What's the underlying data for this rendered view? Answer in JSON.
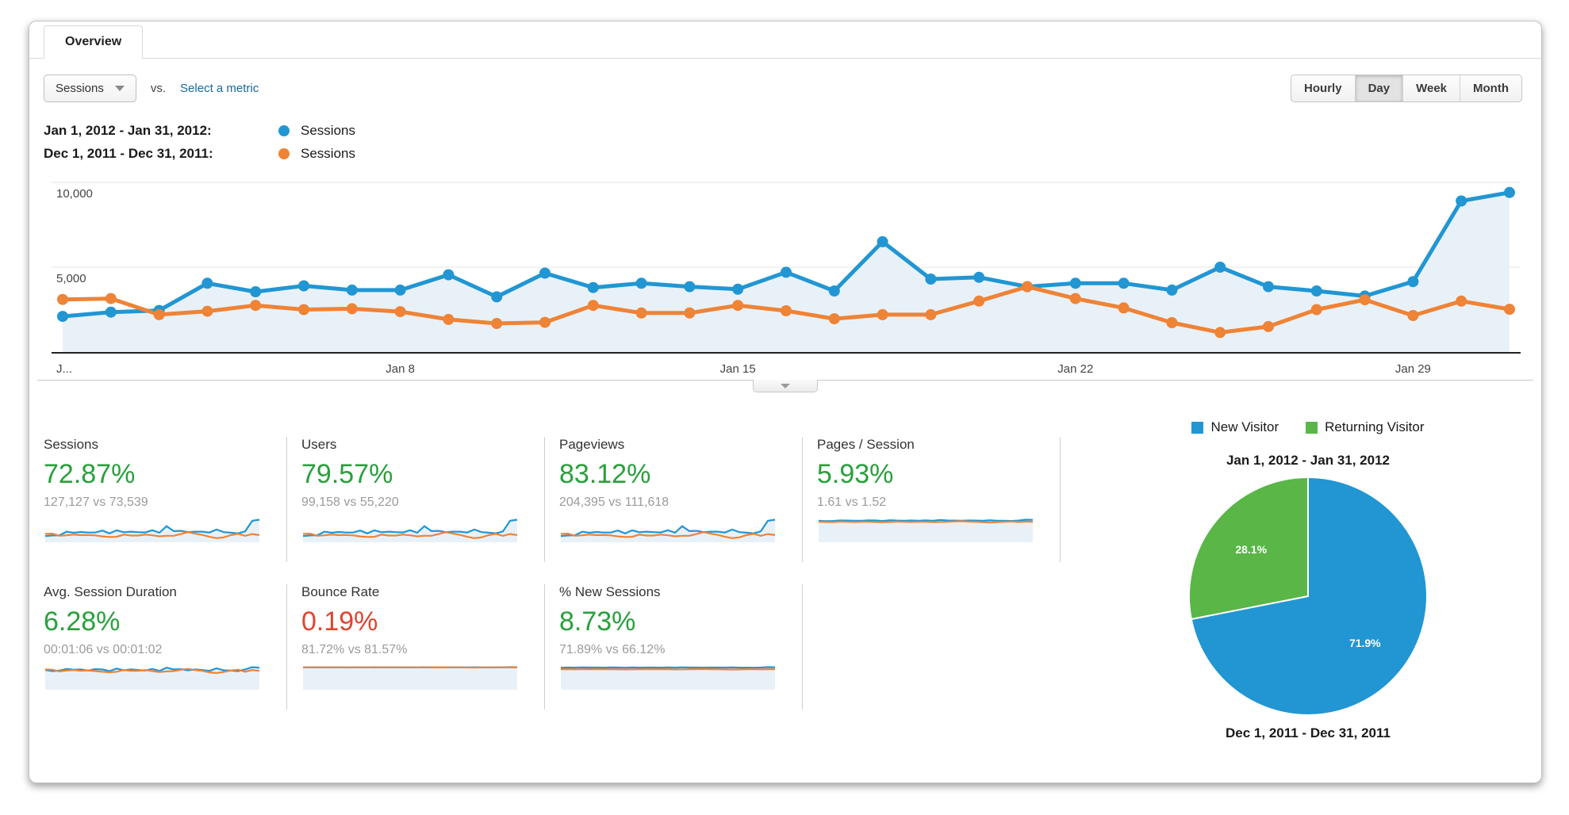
{
  "tab": {
    "label": "Overview"
  },
  "controls": {
    "metric_selector_value": "Sessions",
    "vs_label": "vs.",
    "select_metric_label": "Select a metric",
    "granularity": [
      {
        "label": "Hourly",
        "active": false
      },
      {
        "label": "Day",
        "active": true
      },
      {
        "label": "Week",
        "active": false
      },
      {
        "label": "Month",
        "active": false
      }
    ]
  },
  "colors": {
    "blue": "#2196d3",
    "orange": "#ef8336",
    "area_fill": "#e9f1f8",
    "pie_green": "#59b647",
    "green_text": "#28a03c",
    "red_text": "#e0442f",
    "link": "#156a9e",
    "grid": "#e4e4e4",
    "baseline": "#222222"
  },
  "legend": [
    {
      "range": "Jan 1, 2012 - Jan 31, 2012:",
      "metric": "Sessions",
      "color": "#2196d3"
    },
    {
      "range": "Dec 1, 2011 - Dec 31, 2011:",
      "metric": "Sessions",
      "color": "#ef8336"
    }
  ],
  "chart_data": [
    {
      "type": "line",
      "title": "Sessions by day, Jan 1 2012 - Jan 31 2012 vs Dec 1 2011 - Dec 31 2011",
      "x": [
        "Jan 1",
        "Jan 2",
        "Jan 3",
        "Jan 4",
        "Jan 5",
        "Jan 6",
        "Jan 7",
        "Jan 8",
        "Jan 9",
        "Jan 10",
        "Jan 11",
        "Jan 12",
        "Jan 13",
        "Jan 14",
        "Jan 15",
        "Jan 16",
        "Jan 17",
        "Jan 18",
        "Jan 19",
        "Jan 20",
        "Jan 21",
        "Jan 22",
        "Jan 23",
        "Jan 24",
        "Jan 25",
        "Jan 26",
        "Jan 27",
        "Jan 28",
        "Jan 29",
        "Jan 30",
        "Jan 31"
      ],
      "tick_labels": [
        {
          "day": 1,
          "label": "J...",
          "align": "left"
        },
        {
          "day": 8,
          "label": "Jan 8"
        },
        {
          "day": 15,
          "label": "Jan 15"
        },
        {
          "day": 22,
          "label": "Jan 22"
        },
        {
          "day": 29,
          "label": "Jan 29"
        }
      ],
      "ylim": [
        0,
        10000
      ],
      "yticks": [
        {
          "value": 5000,
          "label": "5,000"
        },
        {
          "value": 10000,
          "label": "10,000"
        }
      ],
      "grid": true,
      "series": [
        {
          "name": "Sessions (Jan 1, 2012 - Jan 31, 2012)",
          "color": "#2196d3",
          "values": [
            2100,
            2350,
            2450,
            4050,
            3550,
            3900,
            3650,
            3650,
            4550,
            3250,
            4650,
            3800,
            4050,
            3850,
            3700,
            4700,
            3600,
            6500,
            4300,
            4400,
            3850,
            4050,
            4050,
            3650,
            5000,
            3850,
            3600,
            3300,
            4150,
            8900,
            9400
          ]
        },
        {
          "name": "Sessions (Dec 1, 2011 - Dec 31, 2011)",
          "color": "#ef8336",
          "values": [
            3100,
            3150,
            2200,
            2400,
            2750,
            2500,
            2550,
            2380,
            1920,
            1680,
            1750,
            2750,
            2300,
            2300,
            2750,
            2430,
            1960,
            2200,
            2200,
            3000,
            3850,
            3150,
            2600,
            1730,
            1150,
            1500,
            2500,
            3080,
            2150,
            3000,
            2520
          ]
        }
      ]
    },
    {
      "type": "pie",
      "title": "Jan 1, 2012 - Jan 31, 2012",
      "footer": "Dec 1, 2011 - Dec 31, 2011",
      "labels": [
        "New Visitor",
        "Returning Visitor"
      ],
      "values": [
        71.9,
        28.1
      ],
      "data_labels": [
        "71.9%",
        "28.1%"
      ],
      "colors": [
        "#2196d3",
        "#59b647"
      ]
    }
  ],
  "sparks": {
    "pages_session": {
      "blue": [
        1.6,
        1.57,
        1.58,
        1.62,
        1.61,
        1.6,
        1.59,
        1.63,
        1.62,
        1.58,
        1.64,
        1.61,
        1.6,
        1.62,
        1.59,
        1.63,
        1.6,
        1.66,
        1.62,
        1.61,
        1.6,
        1.62,
        1.61,
        1.59,
        1.64,
        1.6,
        1.59,
        1.58,
        1.61,
        1.68,
        1.67
      ],
      "orange": [
        1.52,
        1.5,
        1.49,
        1.53,
        1.51,
        1.5,
        1.52,
        1.51,
        1.49,
        1.48,
        1.5,
        1.53,
        1.51,
        1.5,
        1.52,
        1.51,
        1.49,
        1.5,
        1.51,
        1.54,
        1.56,
        1.53,
        1.51,
        1.48,
        1.46,
        1.49,
        1.52,
        1.54,
        1.5,
        1.53,
        1.51
      ]
    },
    "duration": {
      "blue": [
        64,
        60,
        62,
        68,
        65,
        66,
        62,
        67,
        66,
        60,
        69,
        63,
        66,
        64,
        62,
        68,
        61,
        72,
        66,
        67,
        63,
        66,
        64,
        61,
        70,
        63,
        62,
        60,
        66,
        74,
        72
      ],
      "orange": [
        66,
        65,
        59,
        62,
        64,
        61,
        63,
        60,
        58,
        56,
        58,
        64,
        61,
        61,
        64,
        60,
        57,
        59,
        60,
        65,
        68,
        64,
        61,
        56,
        53,
        57,
        62,
        65,
        58,
        64,
        61
      ]
    },
    "bounce": {
      "blue": [
        81.5,
        81.9,
        82.1,
        81.4,
        81.7,
        81.8,
        81.6,
        81.9,
        81.7,
        81.5,
        82.0,
        81.6,
        81.8,
        81.7,
        81.6,
        81.9,
        81.5,
        82.2,
        81.8,
        81.7,
        81.6,
        81.8,
        81.7,
        81.5,
        82.0,
        81.6,
        81.5,
        81.4,
        81.7,
        82.3,
        82.1
      ],
      "orange": [
        81.6,
        81.8,
        81.3,
        81.5,
        81.7,
        81.4,
        81.6,
        81.5,
        81.2,
        81.1,
        81.3,
        81.7,
        81.4,
        81.4,
        81.7,
        81.4,
        81.1,
        81.3,
        81.4,
        81.8,
        82.0,
        81.7,
        81.4,
        81.0,
        80.8,
        81.1,
        81.5,
        81.8,
        81.2,
        81.7,
        81.4
      ]
    },
    "new_sessions": {
      "blue": [
        71.5,
        72.0,
        71.8,
        72.4,
        72.0,
        72.2,
        71.7,
        72.3,
        72.1,
        71.6,
        72.5,
        71.9,
        72.1,
        72.0,
        71.8,
        72.3,
        71.7,
        73.0,
        72.1,
        72.2,
        71.9,
        72.1,
        72.0,
        71.7,
        72.6,
        71.9,
        71.8,
        71.6,
        72.0,
        73.4,
        73.2
      ],
      "orange": [
        66.2,
        66.5,
        65.8,
        66.0,
        66.3,
        66.0,
        66.2,
        66.0,
        65.6,
        65.4,
        65.7,
        66.3,
        66.0,
        66.0,
        66.3,
        66.0,
        65.5,
        65.8,
        65.9,
        66.5,
        66.9,
        66.4,
        66.0,
        65.4,
        65.1,
        65.5,
        66.1,
        66.5,
        65.7,
        66.3,
        66.0
      ]
    }
  },
  "metrics": {
    "rows": [
      [
        {
          "title": "Sessions",
          "delta": "72.87%",
          "color": "#28a03c",
          "sub": "127,127 vs 73,539",
          "spark": "timeline"
        },
        {
          "title": "Users",
          "delta": "79.57%",
          "color": "#28a03c",
          "sub": "99,158 vs 55,220",
          "spark": "timeline"
        },
        {
          "title": "Pageviews",
          "delta": "83.12%",
          "color": "#28a03c",
          "sub": "204,395 vs 111,618",
          "spark": "timeline"
        },
        {
          "title": "Pages / Session",
          "delta": "5.93%",
          "color": "#28a03c",
          "sub": "1.61 vs 1.52",
          "spark": "pages_session"
        }
      ],
      [
        {
          "title": "Avg. Session Duration",
          "delta": "6.28%",
          "color": "#28a03c",
          "sub": "00:01:06 vs 00:01:02",
          "spark": "duration"
        },
        {
          "title": "Bounce Rate",
          "delta": "0.19%",
          "color": "#e0442f",
          "sub": "81.72% vs 81.57%",
          "spark": "bounce"
        },
        {
          "title": "% New Sessions",
          "delta": "8.73%",
          "color": "#28a03c",
          "sub": "71.89% vs 66.12%",
          "spark": "new_sessions"
        }
      ]
    ]
  },
  "pie_panel": {
    "legend": [
      {
        "label": "New Visitor",
        "color": "#2196d3"
      },
      {
        "label": "Returning Visitor",
        "color": "#59b647"
      }
    ]
  }
}
